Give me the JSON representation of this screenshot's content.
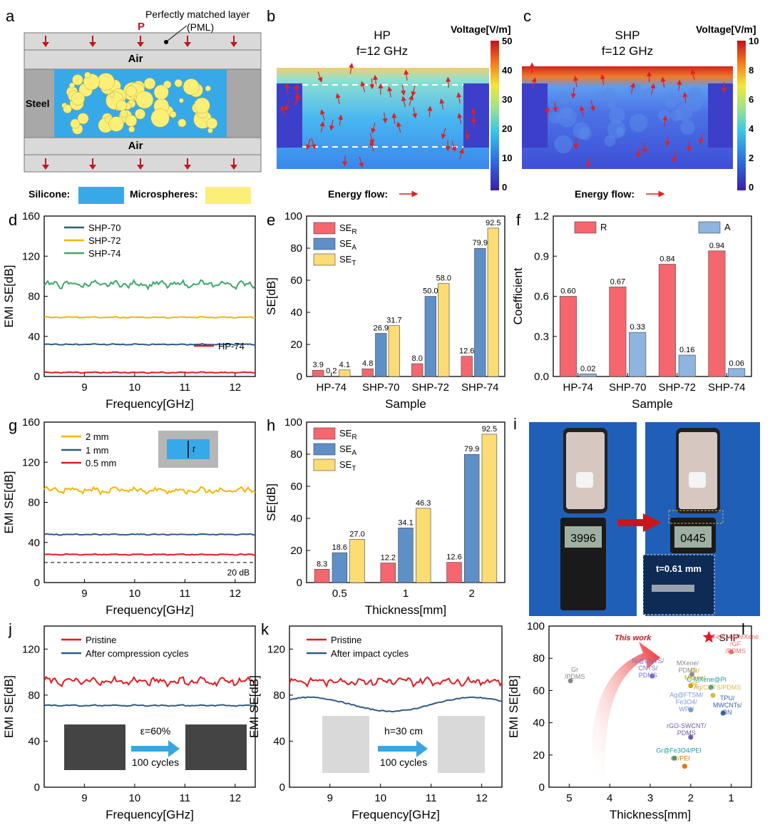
{
  "panels": {
    "a": {
      "label": "a",
      "pml": "Perfectly matched layer",
      "pml2": "(PML)",
      "p": "P",
      "air_top": "Air",
      "air_bottom": "Air",
      "steel": "Steel",
      "silicone": "Silicone:",
      "microspheres": "Microspheres:",
      "colors": {
        "silicone": "#38a9e8",
        "microspheres": "#fbef78",
        "steel": "#a8a8a8",
        "air": "#d9d9d9",
        "arrow": "#c0171d"
      }
    },
    "b": {
      "label": "b",
      "title1": "HP",
      "title2": "f=12 GHz",
      "cbar_title": "Voltage[V/m]",
      "cbar_ticks": [
        "50",
        "40",
        "30",
        "20",
        "10",
        "0"
      ],
      "energy": "Energy flow:"
    },
    "c": {
      "label": "c",
      "title1": "SHP",
      "title2": "f=12 GHz",
      "cbar_title": "Voltage[V/m]",
      "cbar_ticks": [
        "10",
        "8",
        "6",
        "4",
        "2",
        "0"
      ],
      "energy": "Energy flow:"
    }
  },
  "chart_data": [
    {
      "id": "d",
      "label": "d",
      "type": "line",
      "xlabel": "Frequency[GHz]",
      "ylabel": "EMI SE[dB]",
      "xlim": [
        8.2,
        12.4
      ],
      "ylim": [
        0,
        160
      ],
      "xticks": [
        "9",
        "10",
        "11",
        "12"
      ],
      "yticks": [
        "0",
        "40",
        "80",
        "120",
        "160"
      ],
      "series": [
        {
          "name": "SHP-70",
          "value": 32,
          "color": "#2e5a8a"
        },
        {
          "name": "SHP-72",
          "value": 59,
          "color": "#f2b600"
        },
        {
          "name": "SHP-74",
          "value": 92,
          "color": "#3ea868"
        },
        {
          "name": "HP-74",
          "value": 4,
          "color": "#e11b22"
        }
      ]
    },
    {
      "id": "e",
      "label": "e",
      "type": "bar",
      "xlabel": "Sample",
      "ylabel": "SE[dB]",
      "ylim": [
        0,
        100
      ],
      "yticks": [
        "0",
        "20",
        "40",
        "60",
        "80",
        "100"
      ],
      "categories": [
        "HP-74",
        "SHP-70",
        "SHP-72",
        "SHP-74"
      ],
      "series": [
        {
          "name": "SE",
          "sub": "R",
          "values": [
            3.9,
            4.8,
            8.0,
            12.6
          ],
          "labels": [
            "3.9",
            "4.8",
            "8.0",
            "12.6"
          ],
          "color": "#f5666f"
        },
        {
          "name": "SE",
          "sub": "A",
          "values": [
            0.2,
            26.9,
            50.0,
            79.9
          ],
          "labels": [
            "0.2",
            "26.9",
            "50.0",
            "79.9"
          ],
          "color": "#5f8fc7"
        },
        {
          "name": "SE",
          "sub": "T",
          "values": [
            4.1,
            31.7,
            58.0,
            92.5
          ],
          "labels": [
            "4.1",
            "31.7",
            "58.0",
            "92.5"
          ],
          "color": "#fcdc74"
        }
      ]
    },
    {
      "id": "f",
      "label": "f",
      "type": "bar",
      "xlabel": "Sample",
      "ylabel": "Coefficient",
      "ylim": [
        0,
        1.2
      ],
      "yticks": [
        "0.0",
        "0.3",
        "0.6",
        "0.9",
        "1.2"
      ],
      "categories": [
        "HP-74",
        "SHP-70",
        "SHP-72",
        "SHP-74"
      ],
      "series": [
        {
          "name": "R",
          "values": [
            0.6,
            0.67,
            0.84,
            0.94
          ],
          "labels": [
            "0.60",
            "0.67",
            "0.84",
            "0.94"
          ],
          "color": "#f5666f"
        },
        {
          "name": "A",
          "values": [
            0.02,
            0.33,
            0.16,
            0.06
          ],
          "labels": [
            "0.02",
            "0.33",
            "0.16",
            "0.06"
          ],
          "color": "#8eb4e0"
        }
      ]
    },
    {
      "id": "g",
      "label": "g",
      "type": "line",
      "xlabel": "Frequency[GHz]",
      "ylabel": "EMI SE[dB]",
      "xlim": [
        8.2,
        12.4
      ],
      "ylim": [
        0,
        160
      ],
      "xticks": [
        "9",
        "10",
        "11",
        "12"
      ],
      "yticks": [
        "0",
        "40",
        "80",
        "120",
        "160"
      ],
      "series": [
        {
          "name": "2 mm",
          "value": 92,
          "color": "#f2b600"
        },
        {
          "name": "1 mm",
          "value": 48,
          "color": "#2e5a8a"
        },
        {
          "name": "0.5 mm",
          "value": 28,
          "color": "#e11b22"
        }
      ],
      "reference": {
        "value": 20,
        "label": "20 dB"
      }
    },
    {
      "id": "h",
      "label": "h",
      "type": "bar",
      "xlabel": "Thickness[mm]",
      "ylabel": "SE[dB]",
      "ylim": [
        0,
        100
      ],
      "yticks": [
        "0",
        "20",
        "40",
        "60",
        "80",
        "100"
      ],
      "categories": [
        "0.5",
        "1",
        "2"
      ],
      "series": [
        {
          "name": "SE",
          "sub": "R",
          "values": [
            8.3,
            12.2,
            12.6
          ],
          "labels": [
            "8.3",
            "12.2",
            "12.6"
          ],
          "color": "#f5666f"
        },
        {
          "name": "SE",
          "sub": "A",
          "values": [
            18.6,
            34.1,
            79.9
          ],
          "labels": [
            "18.6",
            "34.1",
            "79.9"
          ],
          "color": "#5f8fc7"
        },
        {
          "name": "SE",
          "sub": "T",
          "values": [
            27.0,
            46.3,
            92.5
          ],
          "labels": [
            "27.0",
            "46.3",
            "92.5"
          ],
          "color": "#fcdc74"
        }
      ]
    },
    {
      "id": "j",
      "label": "j",
      "type": "line",
      "xlabel": "Frequency[GHz]",
      "ylabel": "EMI SE[dB]",
      "xlim": [
        8.2,
        12.4
      ],
      "ylim": [
        0,
        140
      ],
      "xticks": [
        "9",
        "10",
        "11",
        "12"
      ],
      "yticks": [
        "0",
        "40",
        "80",
        "120"
      ],
      "series": [
        {
          "name": "Pristine",
          "value": 92,
          "color": "#e11b22"
        },
        {
          "name": "After compression cycles",
          "value": 71,
          "color": "#2e5a8a"
        }
      ],
      "inset": {
        "strain": "ε=60%",
        "cycles": "100 cycles"
      }
    },
    {
      "id": "k",
      "label": "k",
      "type": "line",
      "xlabel": "Frequency[GHz]",
      "ylabel": "EMI SE[dB]",
      "xlim": [
        8.2,
        12.4
      ],
      "ylim": [
        0,
        140
      ],
      "xticks": [
        "9",
        "10",
        "11",
        "12"
      ],
      "yticks": [
        "0",
        "40",
        "80",
        "120"
      ],
      "series": [
        {
          "name": "Pristine",
          "value": 92,
          "color": "#e11b22"
        },
        {
          "name": "After impact cycles",
          "value": 72,
          "color": "#2e5a8a"
        }
      ],
      "inset": {
        "height": "h=30 cm",
        "cycles": "100 cycles"
      }
    },
    {
      "id": "l",
      "label": "l",
      "type": "scatter",
      "xlabel": "Thickness[mm]",
      "ylabel": "EMI SE[dB]",
      "xlim": [
        5.5,
        0.5
      ],
      "ylim": [
        0,
        100
      ],
      "xticks": [
        "5",
        "4",
        "3",
        "2",
        "1"
      ],
      "yticks": [
        "0",
        "20",
        "40",
        "60",
        "80",
        "100"
      ],
      "title": "This work",
      "points": [
        {
          "name": "SHP",
          "x": 1.55,
          "y": 93,
          "color": "#e11b22"
        },
        {
          "name": "Gr /PDMS",
          "x": 4.97,
          "y": 66,
          "color": "#888888"
        },
        {
          "name": "MXene/ PDMS",
          "x": 1.97,
          "y": 70,
          "color": "#8a8a8a"
        },
        {
          "name": "Fe3O4@MXene /GF /PDMS",
          "x": 1.0,
          "y": 84,
          "color": "#f06b6b"
        },
        {
          "name": "Ni@CNTS/ CNTS/ PDMS",
          "x": 2.95,
          "y": 69,
          "color": "#7b6fc9"
        },
        {
          "name": "Gr/ Mxene/ PE",
          "x": 2.0,
          "y": 63,
          "color": "#d9a400"
        },
        {
          "name": "C-MXene@PI",
          "x": 1.5,
          "y": 62,
          "color": "#1d9a9a"
        },
        {
          "name": "Ag/CNTS/PDMS",
          "x": 1.45,
          "y": 57,
          "color": "#d8b84a"
        },
        {
          "name": "Ag@FTSM/ Fe3O4/ WPU",
          "x": 2.0,
          "y": 48,
          "color": "#7c9bd1"
        },
        {
          "name": "TPU/ MWCNTs/ BN",
          "x": 1.2,
          "y": 46,
          "color": "#3a5fa3"
        },
        {
          "name": "rGO-SWCNT/ PDMS",
          "x": 2.0,
          "y": 31,
          "color": "#6e5aa8"
        },
        {
          "name": "Gr@Fe3O4/PEI",
          "x": 2.4,
          "y": 18,
          "color": "#1d9a9a"
        },
        {
          "name": "Gr/PEI",
          "x": 2.15,
          "y": 13,
          "color": "#e07b00"
        }
      ]
    }
  ],
  "panel_i": {
    "label": "i",
    "reading1": "3996",
    "reading2": "0445",
    "thickness": "t=0.61 mm"
  }
}
